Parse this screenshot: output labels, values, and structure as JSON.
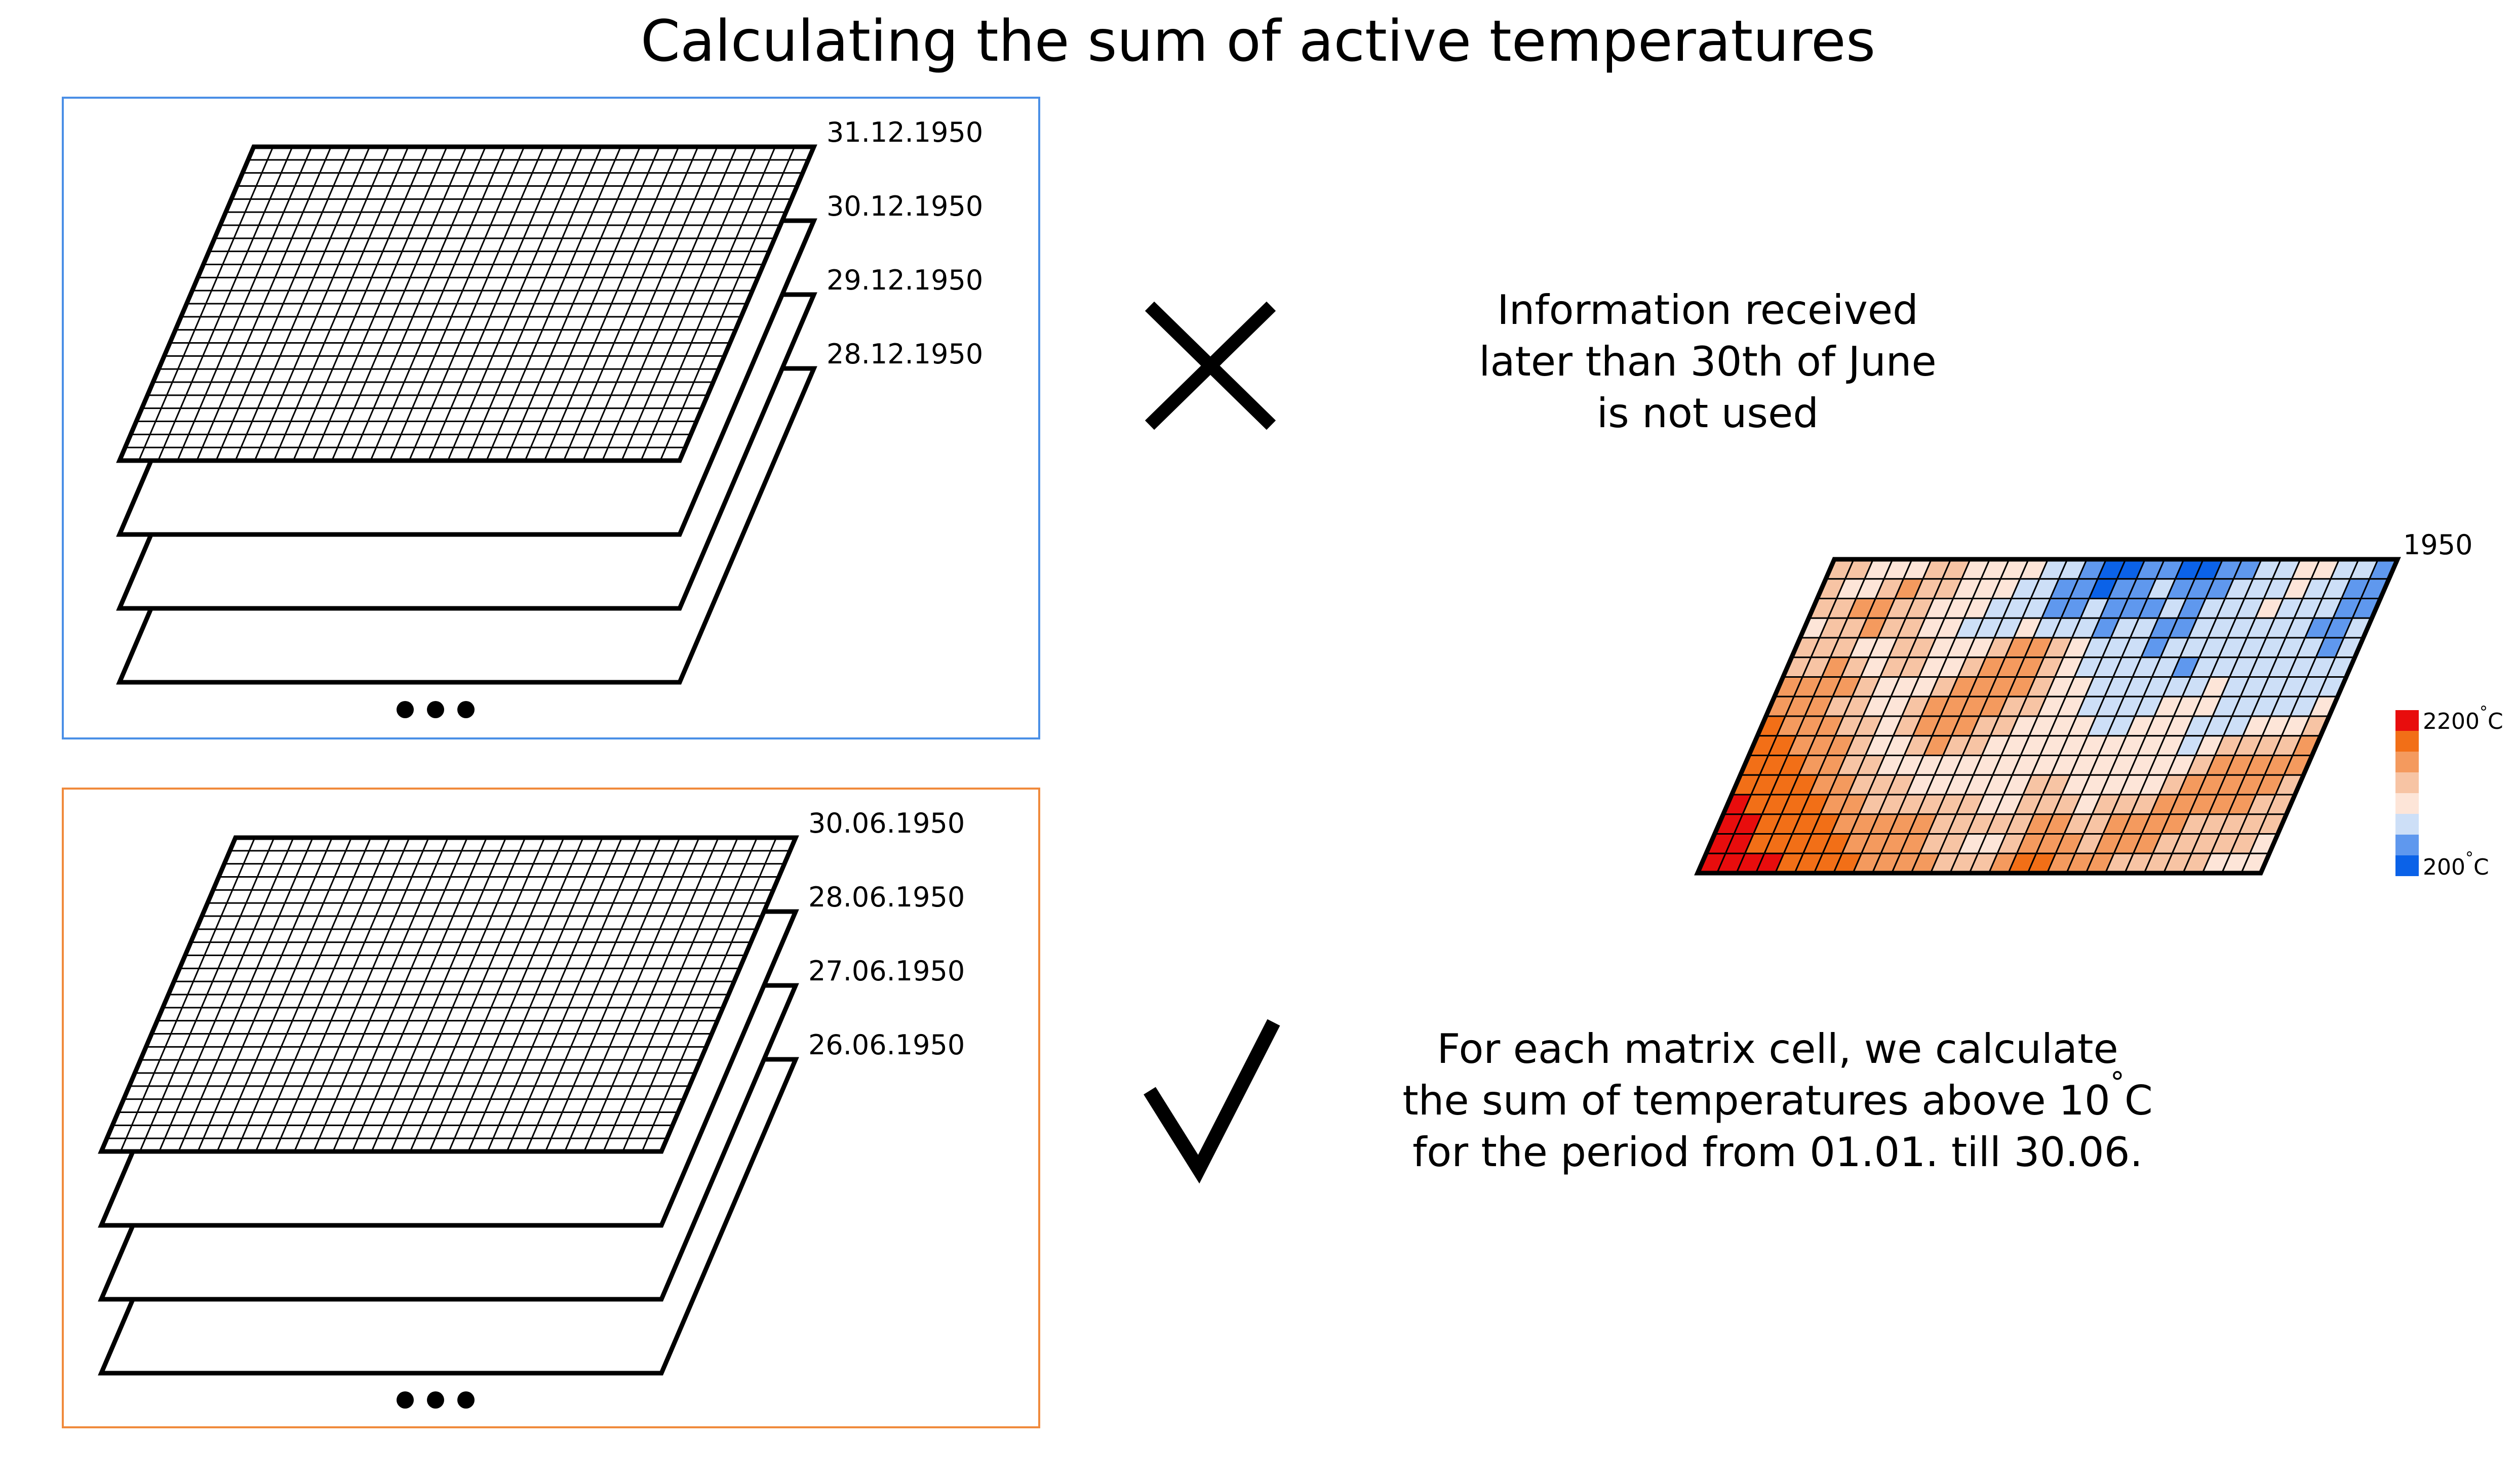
{
  "title": "Calculating the sum of active temperatures",
  "top_panel": {
    "dates": [
      "31.12.1950",
      "30.12.1950",
      "29.12.1950",
      "28.12.1950"
    ],
    "border_color": "#4a8fe6"
  },
  "bottom_panel": {
    "dates": [
      "30.06.1950",
      "28.06.1950",
      "27.06.1950",
      "26.06.1950"
    ],
    "border_color": "#f08a3c"
  },
  "cross_icon": "cross-icon",
  "check_icon": "check-icon",
  "note_not_used": [
    "Information received",
    "later than 30th of June",
    "is not used"
  ],
  "note_calculation": {
    "line1": "For each matrix cell, we calculate",
    "line2_prefix": "the sum of temperatures above 10",
    "line2_degree": "°",
    "line2_suffix": "C",
    "line3": "for the period from 01.01. till 30.06."
  },
  "result_map": {
    "year": "1950",
    "cols": 29,
    "rows": 16,
    "color_scale": [
      "#0b62e8",
      "#5f98ee",
      "#cddff7",
      "#fde5d8",
      "#f7c4a4",
      "#f49a5e",
      "#f26f17",
      "#e80d0d"
    ],
    "cells": [
      [
        4,
        4,
        3,
        3,
        3,
        4,
        4,
        3,
        3,
        3,
        3,
        2,
        2,
        1,
        0,
        0,
        1,
        1,
        0,
        0,
        1,
        1,
        2,
        2,
        3,
        3,
        2,
        2,
        1
      ],
      [
        4,
        3,
        3,
        4,
        5,
        4,
        4,
        3,
        3,
        3,
        2,
        2,
        1,
        1,
        0,
        1,
        1,
        2,
        1,
        1,
        1,
        2,
        2,
        2,
        3,
        2,
        2,
        1,
        1
      ],
      [
        4,
        4,
        5,
        5,
        4,
        4,
        3,
        3,
        3,
        2,
        2,
        2,
        1,
        1,
        2,
        1,
        1,
        1,
        2,
        1,
        2,
        2,
        2,
        3,
        2,
        2,
        2,
        1,
        1
      ],
      [
        3,
        4,
        4,
        5,
        4,
        4,
        3,
        3,
        2,
        2,
        2,
        3,
        2,
        2,
        2,
        1,
        2,
        2,
        1,
        1,
        2,
        2,
        2,
        2,
        2,
        2,
        1,
        1,
        2
      ],
      [
        4,
        4,
        4,
        3,
        3,
        4,
        4,
        3,
        3,
        3,
        4,
        5,
        5,
        4,
        3,
        2,
        2,
        2,
        1,
        2,
        2,
        2,
        2,
        2,
        2,
        2,
        2,
        1,
        2
      ],
      [
        4,
        4,
        5,
        4,
        3,
        4,
        4,
        3,
        3,
        4,
        5,
        5,
        5,
        4,
        3,
        2,
        2,
        2,
        2,
        2,
        1,
        2,
        2,
        2,
        2,
        2,
        2,
        2,
        2
      ],
      [
        5,
        5,
        5,
        5,
        4,
        3,
        3,
        3,
        4,
        5,
        5,
        5,
        5,
        4,
        3,
        3,
        2,
        2,
        2,
        2,
        2,
        2,
        3,
        2,
        2,
        2,
        2,
        2,
        2
      ],
      [
        5,
        5,
        5,
        4,
        4,
        3,
        3,
        4,
        5,
        5,
        5,
        5,
        4,
        4,
        3,
        3,
        2,
        2,
        2,
        2,
        3,
        3,
        3,
        2,
        2,
        2,
        2,
        2,
        3
      ],
      [
        6,
        5,
        5,
        5,
        4,
        4,
        3,
        4,
        5,
        5,
        5,
        4,
        4,
        3,
        3,
        3,
        3,
        2,
        2,
        3,
        3,
        3,
        2,
        2,
        2,
        3,
        3,
        3,
        4
      ],
      [
        6,
        6,
        5,
        5,
        5,
        4,
        3,
        3,
        4,
        5,
        4,
        4,
        3,
        3,
        3,
        3,
        3,
        3,
        3,
        3,
        3,
        3,
        2,
        3,
        4,
        4,
        4,
        4,
        5
      ],
      [
        6,
        6,
        6,
        5,
        5,
        4,
        4,
        3,
        3,
        3,
        3,
        3,
        3,
        3,
        3,
        3,
        3,
        3,
        3,
        3,
        3,
        3,
        3,
        4,
        5,
        5,
        5,
        5,
        5
      ],
      [
        6,
        6,
        6,
        6,
        5,
        5,
        4,
        4,
        4,
        3,
        3,
        3,
        3,
        3,
        3,
        4,
        4,
        3,
        3,
        3,
        3,
        3,
        4,
        5,
        5,
        5,
        5,
        5,
        4
      ],
      [
        7,
        6,
        6,
        6,
        6,
        5,
        5,
        4,
        4,
        4,
        4,
        4,
        4,
        3,
        3,
        4,
        4,
        4,
        3,
        4,
        4,
        4,
        5,
        5,
        5,
        5,
        5,
        4,
        4
      ],
      [
        7,
        7,
        6,
        6,
        6,
        6,
        5,
        5,
        5,
        5,
        5,
        4,
        4,
        4,
        4,
        4,
        5,
        5,
        4,
        4,
        5,
        5,
        5,
        5,
        4,
        4,
        4,
        4,
        4
      ],
      [
        7,
        7,
        6,
        6,
        6,
        6,
        6,
        5,
        5,
        5,
        5,
        4,
        4,
        3,
        3,
        4,
        5,
        5,
        5,
        4,
        5,
        5,
        5,
        4,
        4,
        4,
        4,
        4,
        3
      ],
      [
        7,
        7,
        7,
        7,
        6,
        6,
        6,
        6,
        5,
        5,
        5,
        5,
        4,
        4,
        4,
        5,
        6,
        6,
        5,
        5,
        5,
        4,
        4,
        4,
        4,
        4,
        3,
        3,
        3
      ]
    ],
    "legend_max": "2200",
    "legend_min": "200",
    "legend_unit_degree": "°",
    "legend_unit": "C"
  }
}
